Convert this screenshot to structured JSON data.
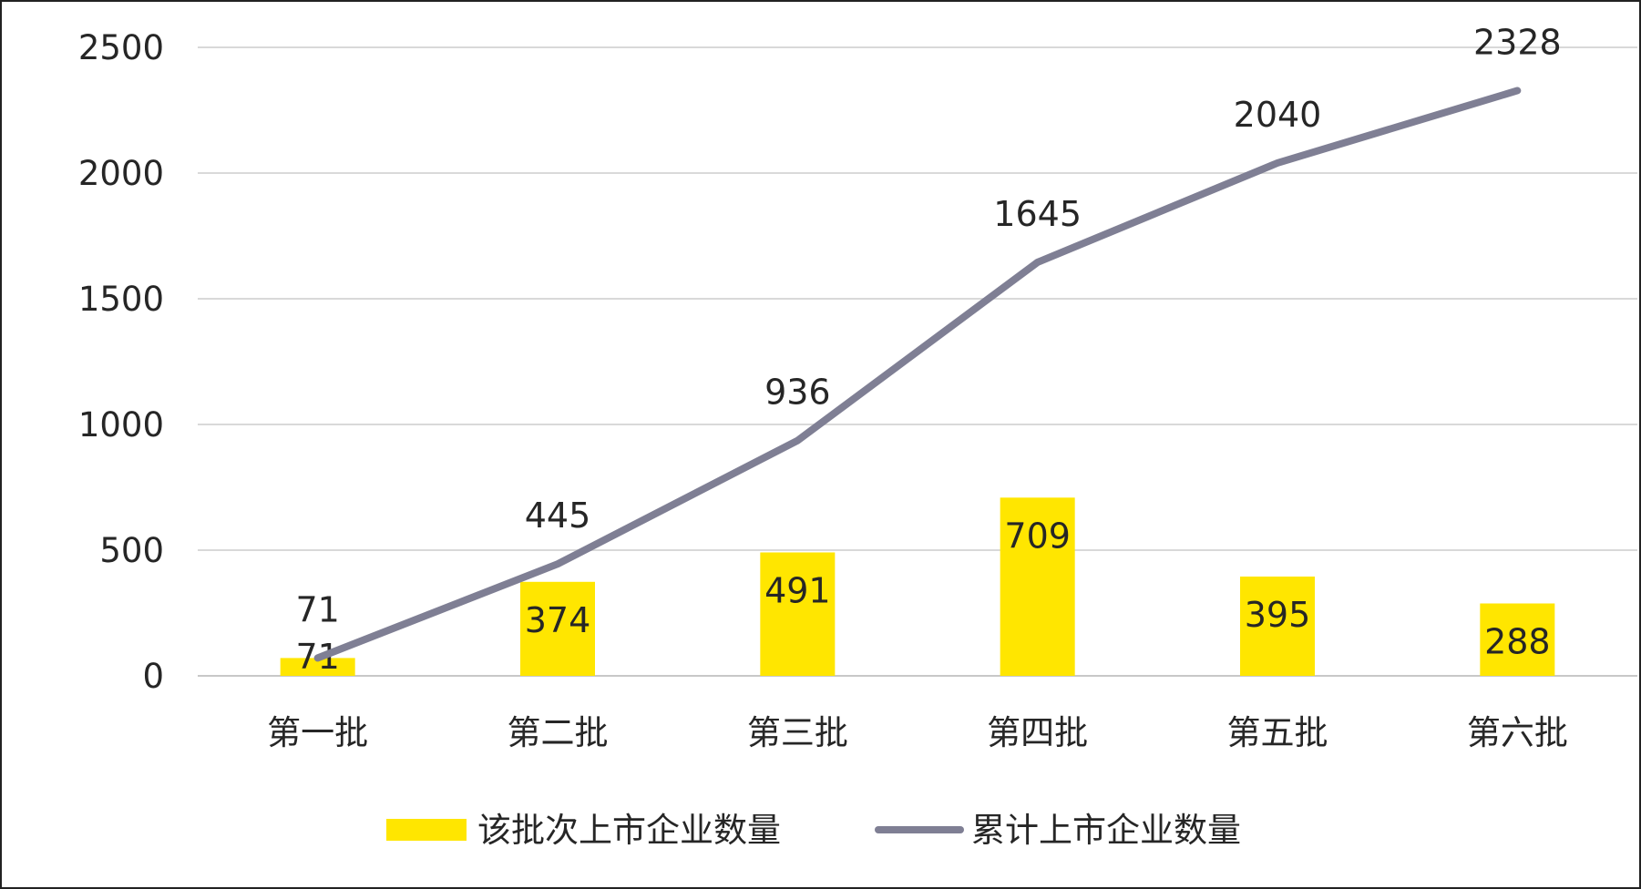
{
  "chart_data": {
    "type": "bar",
    "categories": [
      "第一批",
      "第二批",
      "第三批",
      "第四批",
      "第五批",
      "第六批"
    ],
    "series": [
      {
        "name": "该批次上市企业数量",
        "kind": "bar",
        "color": "#FFE600",
        "values": [
          71,
          374,
          491,
          709,
          395,
          288
        ]
      },
      {
        "name": "累计上市企业数量",
        "kind": "line",
        "color": "#7F7F94",
        "values": [
          71,
          445,
          936,
          1645,
          2040,
          2328
        ]
      }
    ],
    "ylim": [
      0,
      2500
    ],
    "yticks": [
      0,
      500,
      1000,
      1500,
      2000,
      2500
    ],
    "grid": true,
    "legend_position": "bottom"
  }
}
